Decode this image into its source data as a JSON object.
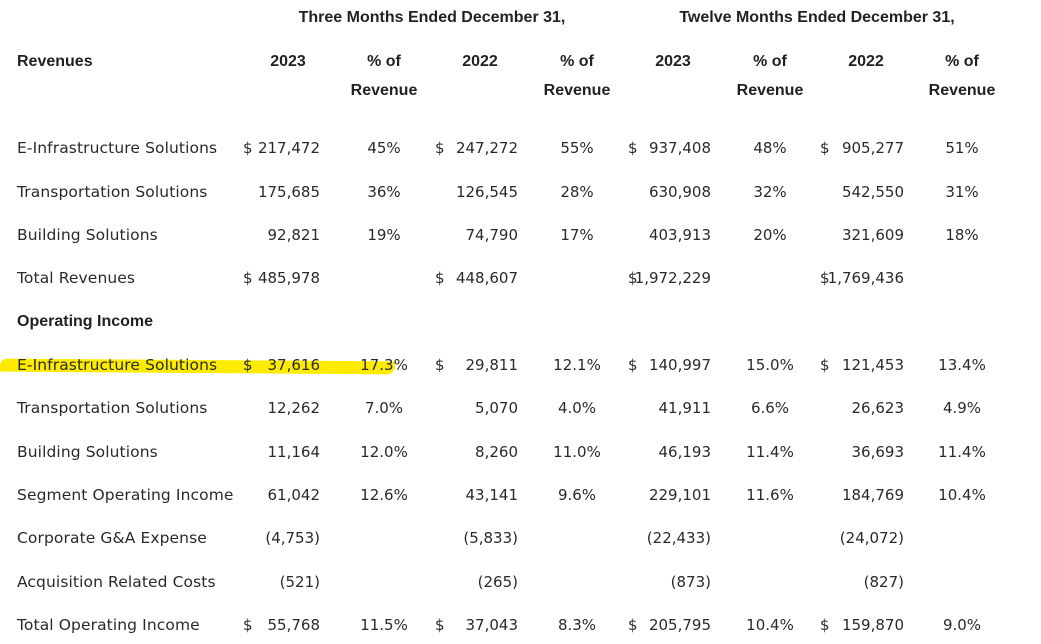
{
  "header": {
    "group1": "Three Months Ended December 31,",
    "group2": "Twelve Months Ended December 31,",
    "row_label": "Revenues",
    "col_2023": "2023",
    "col_2022": "2022",
    "pct_line1": "% of",
    "pct_line2": "Revenue"
  },
  "revenues": [
    {
      "label": "E-Infrastructure Solutions",
      "cur": [
        "$",
        "$",
        "$",
        "$"
      ],
      "v": [
        "217,472",
        "45%",
        "247,272",
        "55%",
        "937,408",
        "48%",
        "905,277",
        "51%"
      ]
    },
    {
      "label": "Transportation Solutions",
      "cur": [
        "",
        "",
        "",
        ""
      ],
      "v": [
        "175,685",
        "36%",
        "126,545",
        "28%",
        "630,908",
        "32%",
        "542,550",
        "31%"
      ]
    },
    {
      "label": "Building Solutions",
      "cur": [
        "",
        "",
        "",
        ""
      ],
      "v": [
        "92,821",
        "19%",
        "74,790",
        "17%",
        "403,913",
        "20%",
        "321,609",
        "18%"
      ]
    },
    {
      "label": "Total Revenues",
      "cur": [
        "$",
        "$",
        "$",
        "$"
      ],
      "v": [
        "485,978",
        "",
        "448,607",
        "",
        "1,972,229",
        "",
        "1,769,436",
        ""
      ]
    }
  ],
  "operating_income_title": "Operating Income",
  "operating": [
    {
      "label": "E-Infrastructure Solutions",
      "cur": [
        "$",
        "$",
        "$",
        "$"
      ],
      "v": [
        "37,616",
        "17.3%",
        "29,811",
        "12.1%",
        "140,997",
        "15.0%",
        "121,453",
        "13.4%"
      ],
      "highlighted": true
    },
    {
      "label": "Transportation Solutions",
      "cur": [
        "",
        "",
        "",
        ""
      ],
      "v": [
        "12,262",
        "7.0%",
        "5,070",
        "4.0%",
        "41,911",
        "6.6%",
        "26,623",
        "4.9%"
      ]
    },
    {
      "label": "Building Solutions",
      "cur": [
        "",
        "",
        "",
        ""
      ],
      "v": [
        "11,164",
        "12.0%",
        "8,260",
        "11.0%",
        "46,193",
        "11.4%",
        "36,693",
        "11.4%"
      ]
    },
    {
      "label": "Segment Operating Income",
      "cur": [
        "",
        "",
        "",
        ""
      ],
      "v": [
        "61,042",
        "12.6%",
        "43,141",
        "9.6%",
        "229,101",
        "11.6%",
        "184,769",
        "10.4%"
      ]
    },
    {
      "label": "Corporate G&A Expense",
      "cur": [
        "",
        "",
        "",
        ""
      ],
      "v": [
        "(4,753)",
        "",
        "(5,833)",
        "",
        "(22,433)",
        "",
        "(24,072)",
        ""
      ]
    },
    {
      "label": "Acquisition Related Costs",
      "cur": [
        "",
        "",
        "",
        ""
      ],
      "v": [
        "(521)",
        "",
        "(265)",
        "",
        "(873)",
        "",
        "(827)",
        ""
      ]
    },
    {
      "label": "Total Operating Income",
      "cur": [
        "$",
        "$",
        "$",
        "$"
      ],
      "v": [
        "55,768",
        "11.5%",
        "37,043",
        "8.3%",
        "205,795",
        "10.4%",
        "159,870",
        "9.0%"
      ]
    }
  ],
  "colors": {
    "highlight": "#ffeb00",
    "text": "#2a2a2a"
  }
}
